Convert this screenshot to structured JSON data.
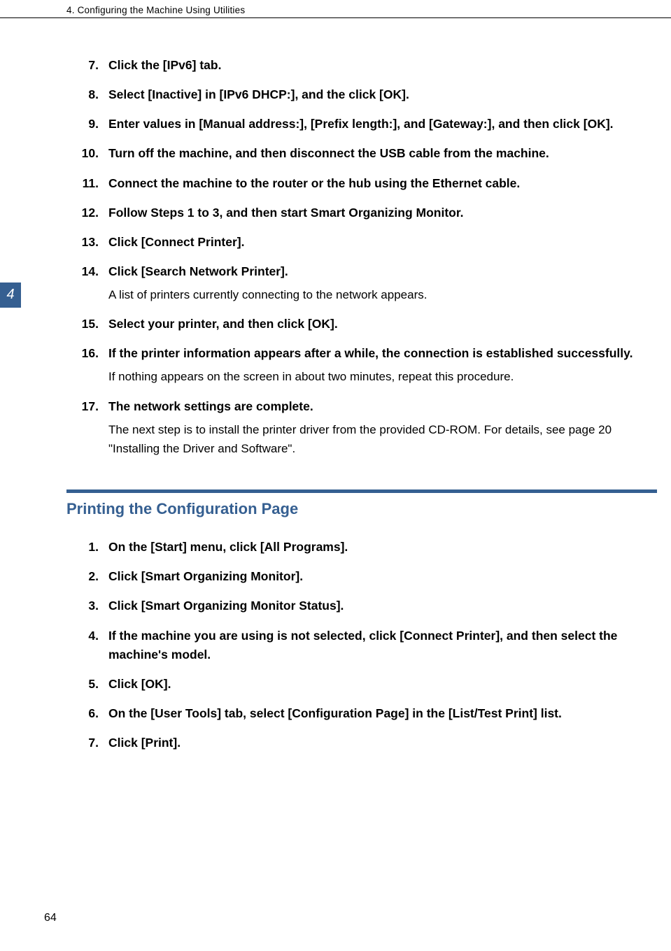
{
  "colors": {
    "accent": "#355f91",
    "text": "#000000",
    "background": "#ffffff"
  },
  "typography": {
    "body_fontsize_pt": 13,
    "heading_fontsize_pt": 17,
    "header_fontsize_pt": 10,
    "bold_weight": 700
  },
  "header": {
    "text": "4. Configuring the Machine Using Utilities"
  },
  "chapter_tab": {
    "number": "4"
  },
  "page_number": "64",
  "steps_a": [
    {
      "num": "7.",
      "title": "Click the [IPv6] tab.",
      "note": null
    },
    {
      "num": "8.",
      "title": "Select [Inactive] in [IPv6 DHCP:], and the click [OK].",
      "note": null
    },
    {
      "num": "9.",
      "title": "Enter values in [Manual address:], [Prefix length:], and [Gateway:], and then click [OK].",
      "note": null
    },
    {
      "num": "10.",
      "title": "Turn off the machine, and then disconnect the USB cable from the machine.",
      "note": null
    },
    {
      "num": "11.",
      "title": "Connect the machine to the router or the hub using the Ethernet cable.",
      "note": null
    },
    {
      "num": "12.",
      "title": "Follow Steps 1 to 3, and then start Smart Organizing Monitor.",
      "note": null
    },
    {
      "num": "13.",
      "title": "Click [Connect Printer].",
      "note": null
    },
    {
      "num": "14.",
      "title": "Click [Search Network Printer].",
      "note": "A list of printers currently connecting to the network appears."
    },
    {
      "num": "15.",
      "title": "Select your printer, and then click [OK].",
      "note": null
    },
    {
      "num": "16.",
      "title": "If the printer information appears after a while, the connection is established successfully.",
      "note": "If nothing appears on the screen in about two minutes, repeat this procedure."
    },
    {
      "num": "17.",
      "title": "The network settings are complete.",
      "note": "The next step is to install the printer driver from the provided CD-ROM. For details, see page 20 \"Installing the Driver and Software\"."
    }
  ],
  "section_heading": "Printing the Configuration Page",
  "steps_b": [
    {
      "num": "1.",
      "title": "On the [Start] menu, click [All Programs].",
      "note": null
    },
    {
      "num": "2.",
      "title": "Click [Smart Organizing Monitor].",
      "note": null
    },
    {
      "num": "3.",
      "title": "Click [Smart Organizing Monitor Status].",
      "note": null
    },
    {
      "num": "4.",
      "title": "If the machine you are using is not selected, click [Connect Printer], and then select the machine's model.",
      "note": null
    },
    {
      "num": "5.",
      "title": "Click [OK].",
      "note": null
    },
    {
      "num": "6.",
      "title": "On the [User Tools] tab, select [Configuration Page] in the [List/Test Print] list.",
      "note": null
    },
    {
      "num": "7.",
      "title": "Click [Print].",
      "note": null
    }
  ]
}
